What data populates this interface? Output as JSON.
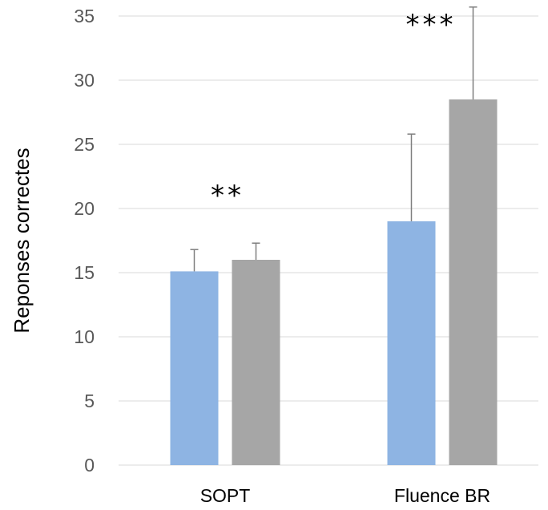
{
  "chart_data": {
    "type": "bar",
    "title": "",
    "xlabel": "",
    "ylabel": "Reponses correctes",
    "categories": [
      "SOPT",
      "Fluence BR"
    ],
    "series": [
      {
        "values": [
          15.1,
          19.0
        ],
        "errors": [
          1.7,
          6.8
        ],
        "color": "#8eb4e3"
      },
      {
        "values": [
          16.0,
          28.5
        ],
        "errors": [
          1.3,
          7.2
        ],
        "color": "#a6a6a6"
      }
    ],
    "significance": [
      "**",
      "***"
    ],
    "ylim": [
      0,
      35
    ],
    "yticks": [
      0,
      5,
      10,
      15,
      20,
      25,
      30,
      35
    ],
    "grid": true,
    "legend": "none",
    "gridline_color": "#d9d9d9",
    "errorbar_color": "#7f7f7f"
  }
}
